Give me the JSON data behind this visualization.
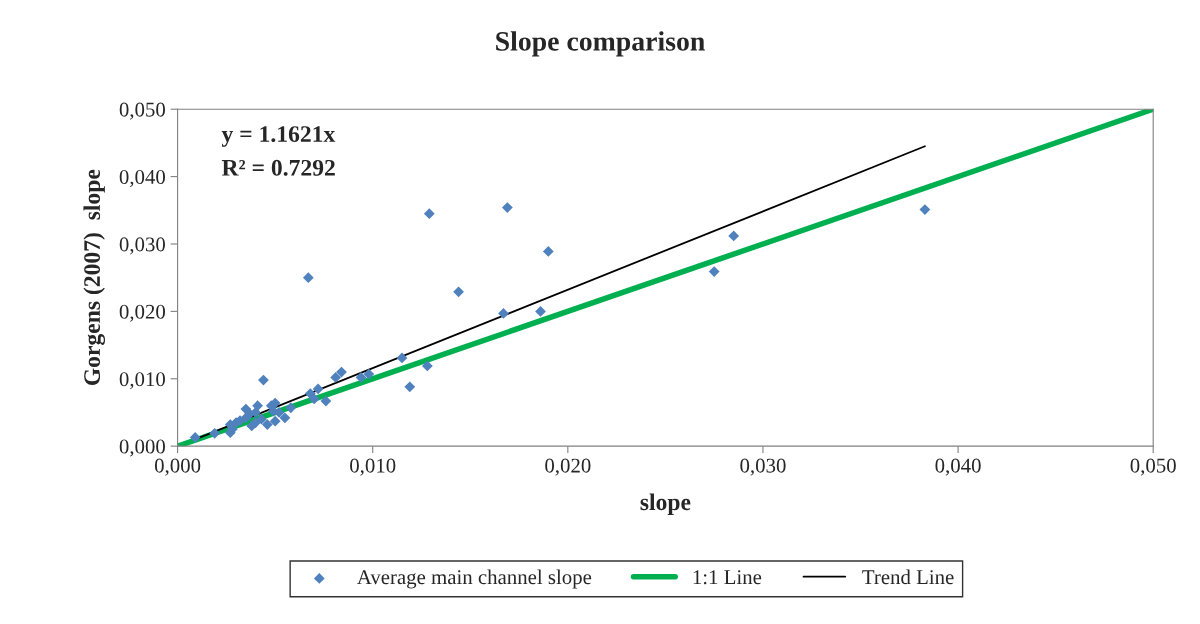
{
  "chart_data": {
    "type": "scatter",
    "title": "Slope comparison",
    "xlabel": "slope",
    "ylabel": "Gorgens (2007)  slope",
    "annotations": [
      "y = 1.1621x",
      "R² = 0.7292"
    ],
    "xlim": [
      0,
      0.05
    ],
    "ylim": [
      0,
      0.05
    ],
    "xticks": [
      {
        "value": 0,
        "label": "0,000"
      },
      {
        "value": 0.01,
        "label": "0,010"
      },
      {
        "value": 0.02,
        "label": "0,020"
      },
      {
        "value": 0.03,
        "label": "0,030"
      },
      {
        "value": 0.04,
        "label": "0,040"
      },
      {
        "value": 0.05,
        "label": "0,050"
      }
    ],
    "yticks": [
      {
        "value": 0,
        "label": "0,000"
      },
      {
        "value": 0.01,
        "label": "0,010"
      },
      {
        "value": 0.02,
        "label": "0,020"
      },
      {
        "value": 0.03,
        "label": "0,030"
      },
      {
        "value": 0.04,
        "label": "0,040"
      },
      {
        "value": 0.05,
        "label": "0,050"
      }
    ],
    "grid": false,
    "legend": "bottom",
    "series": [
      {
        "name": "Average main channel slope",
        "color": "#4f81bd",
        "marker": "diamond",
        "x": [
          0.0009,
          0.0019,
          0.0027,
          0.0028,
          0.0027,
          0.003,
          0.0032,
          0.0035,
          0.0035,
          0.0037,
          0.0038,
          0.004,
          0.004,
          0.0041,
          0.0043,
          0.0044,
          0.0046,
          0.0048,
          0.0049,
          0.005,
          0.005,
          0.0052,
          0.0055,
          0.0058,
          0.0067,
          0.0068,
          0.007,
          0.0072,
          0.0076,
          0.0081,
          0.0084,
          0.0094,
          0.0098,
          0.0115,
          0.0119,
          0.0128,
          0.0129,
          0.0144,
          0.0167,
          0.0169,
          0.0186,
          0.019,
          0.0275,
          0.0285,
          0.0383
        ],
        "values": [
          0.0013,
          0.0019,
          0.002,
          0.0025,
          0.0032,
          0.0035,
          0.0038,
          0.0042,
          0.0055,
          0.0048,
          0.003,
          0.0035,
          0.005,
          0.006,
          0.004,
          0.0098,
          0.0032,
          0.006,
          0.0052,
          0.0064,
          0.0037,
          0.005,
          0.0042,
          0.0057,
          0.025,
          0.0078,
          0.007,
          0.0085,
          0.0067,
          0.0102,
          0.011,
          0.0102,
          0.0107,
          0.0131,
          0.0088,
          0.0119,
          0.0345,
          0.0229,
          0.0197,
          0.0354,
          0.02,
          0.0289,
          0.0259,
          0.0312,
          0.0351
        ]
      },
      {
        "name": "1:1 Line",
        "type": "line",
        "color": "#00b050",
        "marker": "none",
        "line_style": "solid",
        "x": [
          0,
          0.05
        ],
        "values": [
          0,
          0.05
        ]
      },
      {
        "name": "Trend Line",
        "type": "line",
        "color": "#000000",
        "marker": "none",
        "line_style": "solid",
        "x": [
          0.0009,
          0.0383
        ],
        "values": [
          0.001,
          0.0445
        ]
      }
    ]
  }
}
